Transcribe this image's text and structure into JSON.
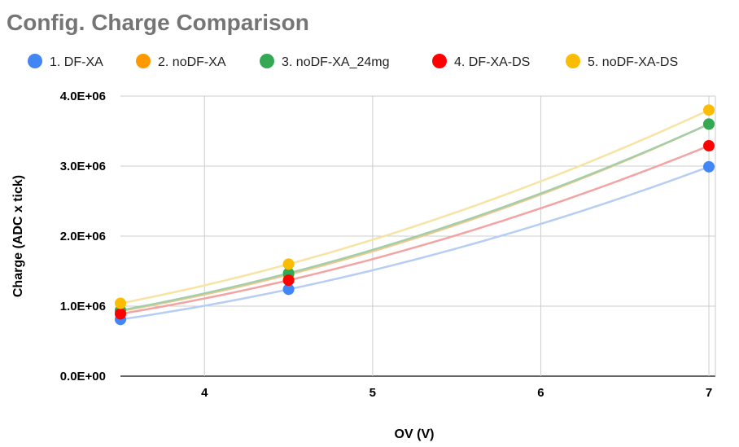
{
  "chart_data": {
    "type": "scatter",
    "title": "Config. Charge Comparison",
    "xlabel": "OV (V)",
    "ylabel": "Charge (ADC x tick)",
    "xlim": [
      3.5,
      7
    ],
    "ylim": [
      0,
      4000000
    ],
    "x_ticks": [
      4,
      5,
      6,
      7
    ],
    "x_tick_labels": [
      "4",
      "5",
      "6",
      "7"
    ],
    "y_ticks": [
      0,
      1000000,
      2000000,
      3000000,
      4000000
    ],
    "y_tick_labels": [
      "0.0E+00",
      "1.0E+06",
      "2.0E+06",
      "3.0E+06",
      "4.0E+06"
    ],
    "grid": true,
    "legend_position": "top",
    "trendline": "polynomial",
    "series": [
      {
        "name": "1. DF-XA",
        "color": "#4285f4",
        "trend_color": "#b6cdf5",
        "points": [
          [
            3.5,
            810000
          ],
          [
            4.5,
            1240000
          ],
          [
            7,
            2990000
          ]
        ]
      },
      {
        "name": "2. noDF-XA",
        "color": "#ff9900",
        "trend_color": "#f5c78e",
        "points": [
          [
            3.5,
            930000
          ],
          [
            4.5,
            1450000
          ],
          [
            7,
            3600000
          ]
        ]
      },
      {
        "name": "3. noDF-XA_24mg",
        "color": "#34a853",
        "trend_color": "#a3cfa8",
        "points": [
          [
            3.5,
            940000
          ],
          [
            4.5,
            1470000
          ],
          [
            7,
            3600000
          ]
        ]
      },
      {
        "name": "4. DF-XA-DS",
        "color": "#ff0000",
        "trend_color": "#f4a3a3",
        "points": [
          [
            3.5,
            890000
          ],
          [
            4.5,
            1370000
          ],
          [
            7,
            3290000
          ]
        ]
      },
      {
        "name": "5. noDF-XA-DS",
        "color": "#fbbc04",
        "trend_color": "#f7e3a3",
        "points": [
          [
            3.5,
            1040000
          ],
          [
            4.5,
            1600000
          ],
          [
            7,
            3800000
          ]
        ]
      }
    ]
  }
}
